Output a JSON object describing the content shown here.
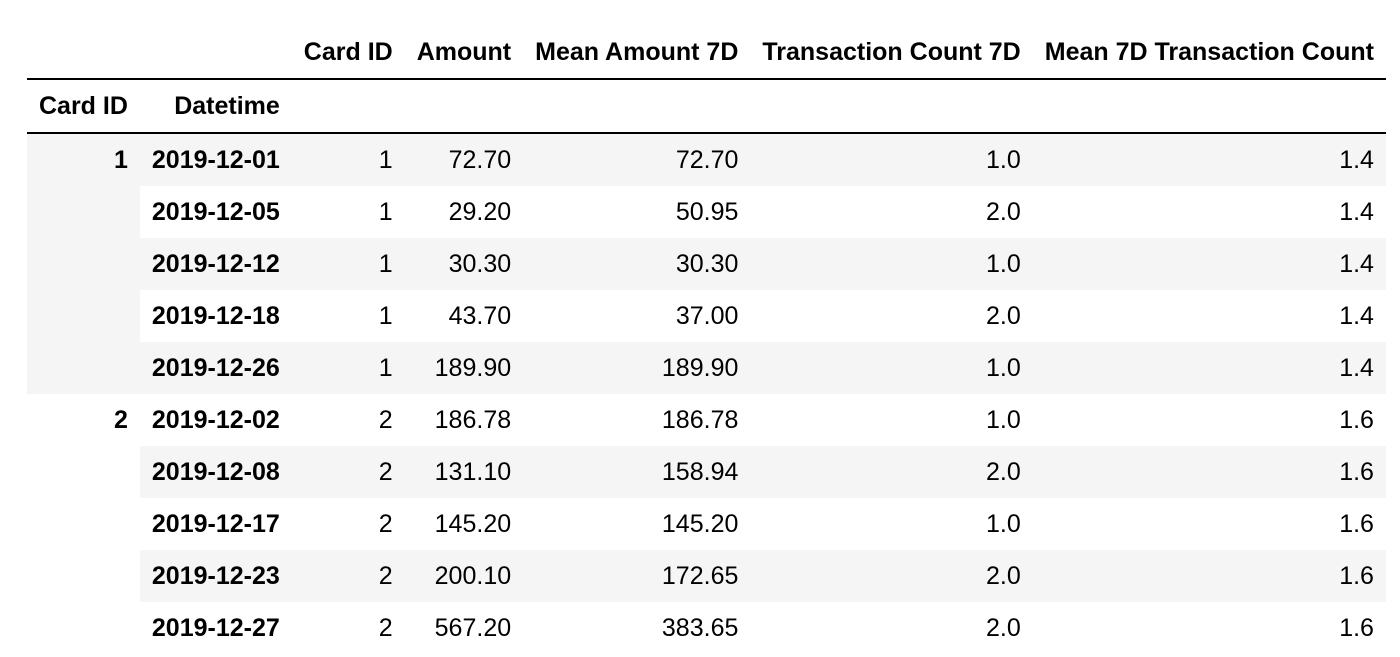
{
  "colors": {
    "background": "#ffffff",
    "row_stripe": "#f5f5f5",
    "header_border": "#000000",
    "text": "#000000"
  },
  "table": {
    "columns": [
      "Card ID",
      "Amount",
      "Mean Amount 7D",
      "Transaction Count 7D",
      "Mean 7D Transaction Count"
    ],
    "index_names": [
      "Card ID",
      "Datetime"
    ],
    "rows": [
      {
        "group": "1",
        "datetime": "2019-12-01",
        "card_id": "1",
        "amount": "72.70",
        "mean_amount_7d": "72.70",
        "tx_count_7d": "1.0",
        "mean_7d_tx_count": "1.4"
      },
      {
        "datetime": "2019-12-05",
        "card_id": "1",
        "amount": "29.20",
        "mean_amount_7d": "50.95",
        "tx_count_7d": "2.0",
        "mean_7d_tx_count": "1.4"
      },
      {
        "datetime": "2019-12-12",
        "card_id": "1",
        "amount": "30.30",
        "mean_amount_7d": "30.30",
        "tx_count_7d": "1.0",
        "mean_7d_tx_count": "1.4"
      },
      {
        "datetime": "2019-12-18",
        "card_id": "1",
        "amount": "43.70",
        "mean_amount_7d": "37.00",
        "tx_count_7d": "2.0",
        "mean_7d_tx_count": "1.4"
      },
      {
        "datetime": "2019-12-26",
        "card_id": "1",
        "amount": "189.90",
        "mean_amount_7d": "189.90",
        "tx_count_7d": "1.0",
        "mean_7d_tx_count": "1.4"
      },
      {
        "group": "2",
        "datetime": "2019-12-02",
        "card_id": "2",
        "amount": "186.78",
        "mean_amount_7d": "186.78",
        "tx_count_7d": "1.0",
        "mean_7d_tx_count": "1.6"
      },
      {
        "datetime": "2019-12-08",
        "card_id": "2",
        "amount": "131.10",
        "mean_amount_7d": "158.94",
        "tx_count_7d": "2.0",
        "mean_7d_tx_count": "1.6"
      },
      {
        "datetime": "2019-12-17",
        "card_id": "2",
        "amount": "145.20",
        "mean_amount_7d": "145.20",
        "tx_count_7d": "1.0",
        "mean_7d_tx_count": "1.6"
      },
      {
        "datetime": "2019-12-23",
        "card_id": "2",
        "amount": "200.10",
        "mean_amount_7d": "172.65",
        "tx_count_7d": "2.0",
        "mean_7d_tx_count": "1.6"
      },
      {
        "datetime": "2019-12-27",
        "card_id": "2",
        "amount": "567.20",
        "mean_amount_7d": "383.65",
        "tx_count_7d": "2.0",
        "mean_7d_tx_count": "1.6"
      }
    ]
  },
  "chart_data": {
    "type": "table",
    "title": "",
    "columns": [
      "Card ID",
      "Amount",
      "Mean Amount 7D",
      "Transaction Count 7D",
      "Mean 7D Transaction Count"
    ],
    "index_names": [
      "Card ID",
      "Datetime"
    ],
    "rows": [
      {
        "card_id_index": 1,
        "datetime": "2019-12-01",
        "card_id": 1,
        "amount": 72.7,
        "mean_amount_7d": 72.7,
        "transaction_count_7d": 1.0,
        "mean_7d_transaction_count": 1.4
      },
      {
        "card_id_index": 1,
        "datetime": "2019-12-05",
        "card_id": 1,
        "amount": 29.2,
        "mean_amount_7d": 50.95,
        "transaction_count_7d": 2.0,
        "mean_7d_transaction_count": 1.4
      },
      {
        "card_id_index": 1,
        "datetime": "2019-12-12",
        "card_id": 1,
        "amount": 30.3,
        "mean_amount_7d": 30.3,
        "transaction_count_7d": 1.0,
        "mean_7d_transaction_count": 1.4
      },
      {
        "card_id_index": 1,
        "datetime": "2019-12-18",
        "card_id": 1,
        "amount": 43.7,
        "mean_amount_7d": 37.0,
        "transaction_count_7d": 2.0,
        "mean_7d_transaction_count": 1.4
      },
      {
        "card_id_index": 1,
        "datetime": "2019-12-26",
        "card_id": 1,
        "amount": 189.9,
        "mean_amount_7d": 189.9,
        "transaction_count_7d": 1.0,
        "mean_7d_transaction_count": 1.4
      },
      {
        "card_id_index": 2,
        "datetime": "2019-12-02",
        "card_id": 2,
        "amount": 186.78,
        "mean_amount_7d": 186.78,
        "transaction_count_7d": 1.0,
        "mean_7d_transaction_count": 1.6
      },
      {
        "card_id_index": 2,
        "datetime": "2019-12-08",
        "card_id": 2,
        "amount": 131.1,
        "mean_amount_7d": 158.94,
        "transaction_count_7d": 2.0,
        "mean_7d_transaction_count": 1.6
      },
      {
        "card_id_index": 2,
        "datetime": "2019-12-17",
        "card_id": 2,
        "amount": 145.2,
        "mean_amount_7d": 145.2,
        "transaction_count_7d": 1.0,
        "mean_7d_transaction_count": 1.6
      },
      {
        "card_id_index": 2,
        "datetime": "2019-12-23",
        "card_id": 2,
        "amount": 200.1,
        "mean_amount_7d": 172.65,
        "transaction_count_7d": 2.0,
        "mean_7d_transaction_count": 1.6
      },
      {
        "card_id_index": 2,
        "datetime": "2019-12-27",
        "card_id": 2,
        "amount": 567.2,
        "mean_amount_7d": 383.65,
        "transaction_count_7d": 2.0,
        "mean_7d_transaction_count": 1.6
      }
    ]
  }
}
